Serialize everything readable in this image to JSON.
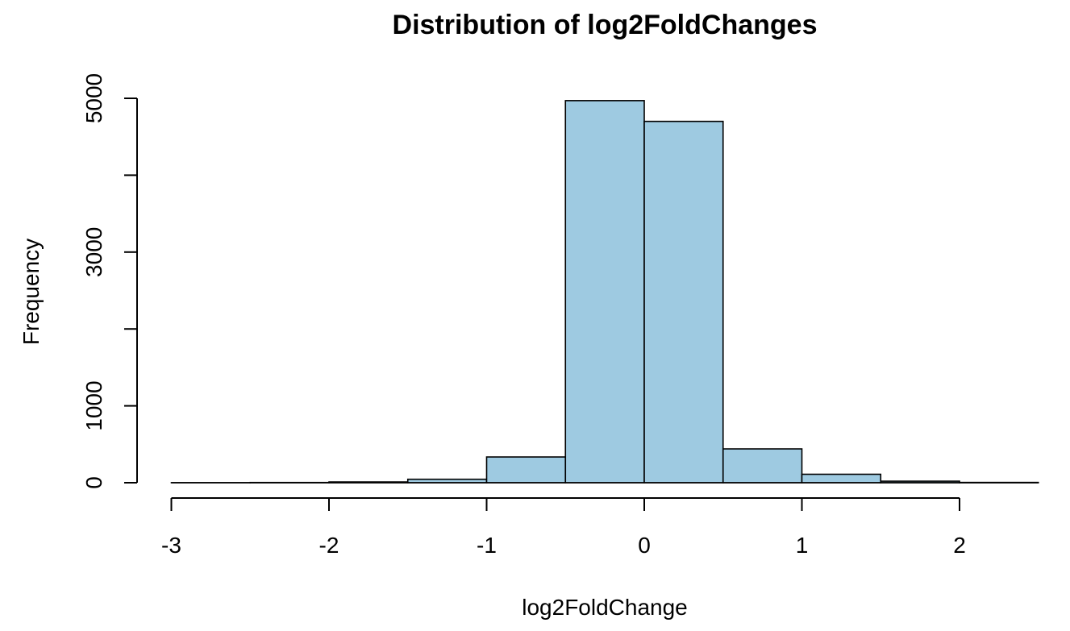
{
  "chart_data": {
    "type": "bar",
    "title": "Distribution of log2FoldChanges",
    "xlabel": "log2FoldChange",
    "ylabel": "Frequency",
    "bar_color": "#9ecae1",
    "border_color": "#000000",
    "bin_edges": [
      -3,
      -2.5,
      -2,
      -1.5,
      -1,
      -0.5,
      0,
      0.5,
      1,
      1.5,
      2,
      2.5
    ],
    "values": [
      1,
      3,
      10,
      45,
      335,
      4970,
      4700,
      440,
      110,
      20,
      4
    ],
    "xlim": [
      -3,
      2.5
    ],
    "ylim": [
      0,
      5000
    ],
    "x_ticks": [
      -3,
      -2,
      -1,
      0,
      1,
      2
    ],
    "x_tick_labels": [
      "-3",
      "-2",
      "-1",
      "0",
      "1",
      "2"
    ],
    "y_ticks": [
      0,
      1000,
      2000,
      3000,
      4000,
      5000
    ],
    "y_tick_labels": [
      "0",
      "1000",
      "",
      "3000",
      "",
      "5000"
    ]
  }
}
